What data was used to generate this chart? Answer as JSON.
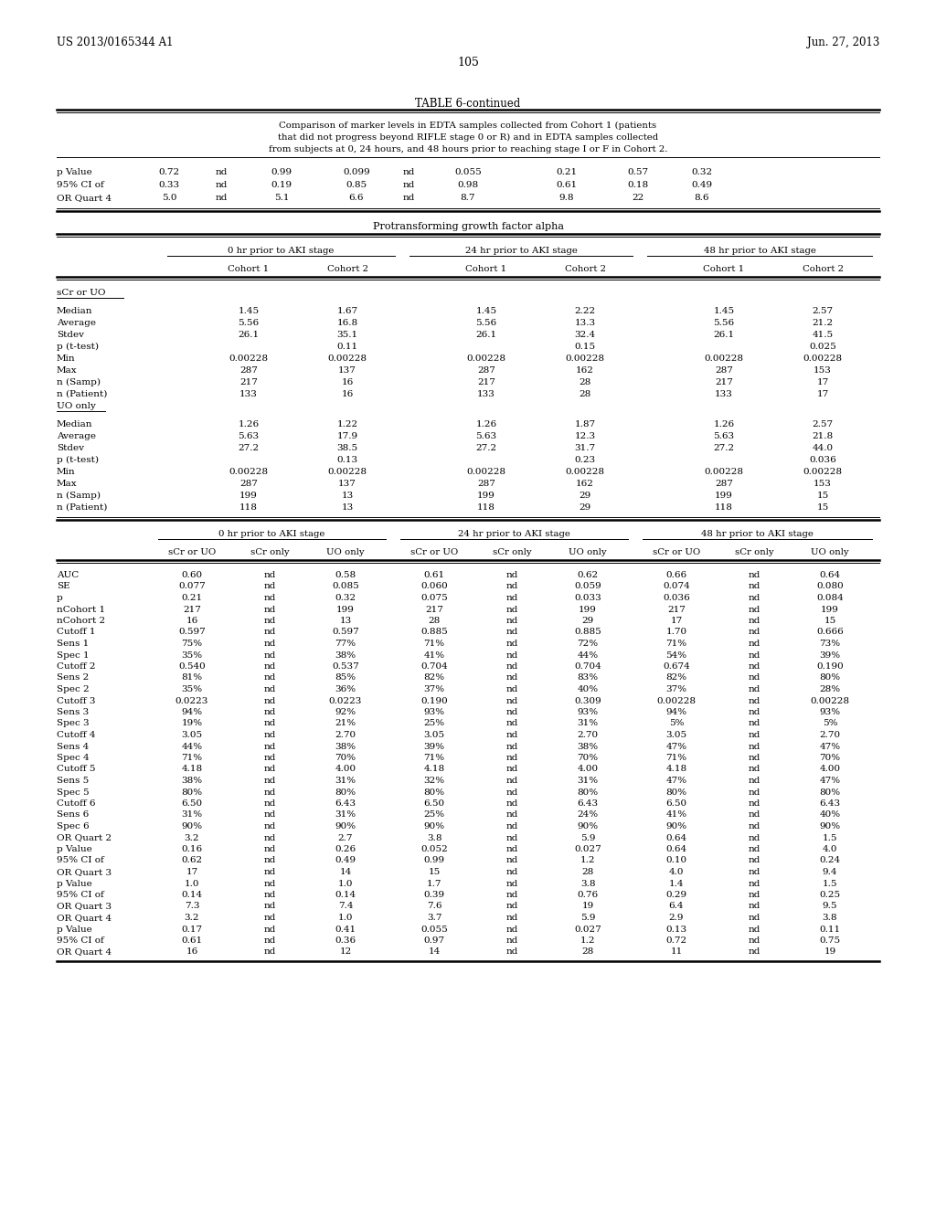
{
  "header_left": "US 2013/0165344 A1",
  "header_right": "Jun. 27, 2013",
  "page_number": "105",
  "table_title": "TABLE 6-continued",
  "caption_line1": "Comparison of marker levels in EDTA samples collected from Cohort 1 (patients",
  "caption_line2": "that did not progress beyond RIFLE stage 0 or R) and in EDTA samples collected",
  "caption_line3": "from subjects at 0, 24 hours, and 48 hours prior to reaching stage I or F in Cohort 2.",
  "top_rows": [
    [
      "p Value",
      "0.72",
      "nd",
      "0.99",
      "0.099",
      "nd",
      "0.055",
      "0.21",
      "0.57",
      "0.32"
    ],
    [
      "95% CI of",
      "0.33",
      "nd",
      "0.19",
      "0.85",
      "nd",
      "0.98",
      "0.61",
      "0.18",
      "0.49"
    ],
    [
      "OR Quart 4",
      "5.0",
      "nd",
      "5.1",
      "6.6",
      "nd",
      "8.7",
      "9.8",
      "22",
      "8.6"
    ]
  ],
  "section2_title": "Protransforming growth factor alpha",
  "col_group_headers": [
    "0 hr prior to AKI stage",
    "24 hr prior to AKI stage",
    "48 hr prior to AKI stage"
  ],
  "col_subheaders": [
    "Cohort 1",
    "Cohort 2",
    "Cohort 1",
    "Cohort 2",
    "Cohort 1",
    "Cohort 2"
  ],
  "section_sCr_UO": "sCr or UO",
  "sCr_UO_rows": [
    [
      "Median",
      "1.45",
      "1.67",
      "1.45",
      "2.22",
      "1.45",
      "2.57"
    ],
    [
      "Average",
      "5.56",
      "16.8",
      "5.56",
      "13.3",
      "5.56",
      "21.2"
    ],
    [
      "Stdev",
      "26.1",
      "35.1",
      "26.1",
      "32.4",
      "26.1",
      "41.5"
    ],
    [
      "p (t-test)",
      "",
      "0.11",
      "",
      "0.15",
      "",
      "0.025"
    ],
    [
      "Min",
      "0.00228",
      "0.00228",
      "0.00228",
      "0.00228",
      "0.00228",
      "0.00228"
    ],
    [
      "Max",
      "287",
      "137",
      "287",
      "162",
      "287",
      "153"
    ],
    [
      "n (Samp)",
      "217",
      "16",
      "217",
      "28",
      "217",
      "17"
    ],
    [
      "n (Patient)",
      "133",
      "16",
      "133",
      "28",
      "133",
      "17"
    ]
  ],
  "section_UO": "UO only",
  "UO_rows": [
    [
      "Median",
      "1.26",
      "1.22",
      "1.26",
      "1.87",
      "1.26",
      "2.57"
    ],
    [
      "Average",
      "5.63",
      "17.9",
      "5.63",
      "12.3",
      "5.63",
      "21.8"
    ],
    [
      "Stdev",
      "27.2",
      "38.5",
      "27.2",
      "31.7",
      "27.2",
      "44.0"
    ],
    [
      "p (t-test)",
      "",
      "0.13",
      "",
      "0.23",
      "",
      "0.036"
    ],
    [
      "Min",
      "0.00228",
      "0.00228",
      "0.00228",
      "0.00228",
      "0.00228",
      "0.00228"
    ],
    [
      "Max",
      "287",
      "137",
      "287",
      "162",
      "287",
      "153"
    ],
    [
      "n (Samp)",
      "199",
      "13",
      "199",
      "29",
      "199",
      "15"
    ],
    [
      "n (Patient)",
      "118",
      "13",
      "118",
      "29",
      "118",
      "15"
    ]
  ],
  "col_group_headers2": [
    "0 hr prior to AKI stage",
    "24 hr prior to AKI stage",
    "48 hr prior to AKI stage"
  ],
  "col_subheaders2": [
    "sCr or UO",
    "sCr only",
    "UO only",
    "sCr or UO",
    "sCr only",
    "UO only",
    "sCr or UO",
    "sCr only",
    "UO only"
  ],
  "auc_rows": [
    [
      "AUC",
      "0.60",
      "nd",
      "0.58",
      "0.61",
      "nd",
      "0.62",
      "0.66",
      "nd",
      "0.64"
    ],
    [
      "SE",
      "0.077",
      "nd",
      "0.085",
      "0.060",
      "nd",
      "0.059",
      "0.074",
      "nd",
      "0.080"
    ],
    [
      "p",
      "0.21",
      "nd",
      "0.32",
      "0.075",
      "nd",
      "0.033",
      "0.036",
      "nd",
      "0.084"
    ],
    [
      "nCohort 1",
      "217",
      "nd",
      "199",
      "217",
      "nd",
      "199",
      "217",
      "nd",
      "199"
    ],
    [
      "nCohort 2",
      "16",
      "nd",
      "13",
      "28",
      "nd",
      "29",
      "17",
      "nd",
      "15"
    ],
    [
      "Cutoff 1",
      "0.597",
      "nd",
      "0.597",
      "0.885",
      "nd",
      "0.885",
      "1.70",
      "nd",
      "0.666"
    ],
    [
      "Sens 1",
      "75%",
      "nd",
      "77%",
      "71%",
      "nd",
      "72%",
      "71%",
      "nd",
      "73%"
    ],
    [
      "Spec 1",
      "35%",
      "nd",
      "38%",
      "41%",
      "nd",
      "44%",
      "54%",
      "nd",
      "39%"
    ],
    [
      "Cutoff 2",
      "0.540",
      "nd",
      "0.537",
      "0.704",
      "nd",
      "0.704",
      "0.674",
      "nd",
      "0.190"
    ],
    [
      "Sens 2",
      "81%",
      "nd",
      "85%",
      "82%",
      "nd",
      "83%",
      "82%",
      "nd",
      "80%"
    ],
    [
      "Spec 2",
      "35%",
      "nd",
      "36%",
      "37%",
      "nd",
      "40%",
      "37%",
      "nd",
      "28%"
    ],
    [
      "Cutoff 3",
      "0.0223",
      "nd",
      "0.0223",
      "0.190",
      "nd",
      "0.309",
      "0.00228",
      "nd",
      "0.00228"
    ],
    [
      "Sens 3",
      "94%",
      "nd",
      "92%",
      "93%",
      "nd",
      "93%",
      "94%",
      "nd",
      "93%"
    ],
    [
      "Spec 3",
      "19%",
      "nd",
      "21%",
      "25%",
      "nd",
      "31%",
      "5%",
      "nd",
      "5%"
    ],
    [
      "Cutoff 4",
      "3.05",
      "nd",
      "2.70",
      "3.05",
      "nd",
      "2.70",
      "3.05",
      "nd",
      "2.70"
    ],
    [
      "Sens 4",
      "44%",
      "nd",
      "38%",
      "39%",
      "nd",
      "38%",
      "47%",
      "nd",
      "47%"
    ],
    [
      "Spec 4",
      "71%",
      "nd",
      "70%",
      "71%",
      "nd",
      "70%",
      "71%",
      "nd",
      "70%"
    ],
    [
      "Cutoff 5",
      "4.18",
      "nd",
      "4.00",
      "4.18",
      "nd",
      "4.00",
      "4.18",
      "nd",
      "4.00"
    ],
    [
      "Sens 5",
      "38%",
      "nd",
      "31%",
      "32%",
      "nd",
      "31%",
      "47%",
      "nd",
      "47%"
    ],
    [
      "Spec 5",
      "80%",
      "nd",
      "80%",
      "80%",
      "nd",
      "80%",
      "80%",
      "nd",
      "80%"
    ],
    [
      "Cutoff 6",
      "6.50",
      "nd",
      "6.43",
      "6.50",
      "nd",
      "6.43",
      "6.50",
      "nd",
      "6.43"
    ],
    [
      "Sens 6",
      "31%",
      "nd",
      "31%",
      "25%",
      "nd",
      "24%",
      "41%",
      "nd",
      "40%"
    ],
    [
      "Spec 6",
      "90%",
      "nd",
      "90%",
      "90%",
      "nd",
      "90%",
      "90%",
      "nd",
      "90%"
    ],
    [
      "OR Quart 2",
      "3.2",
      "nd",
      "2.7",
      "3.8",
      "nd",
      "5.9",
      "0.64",
      "nd",
      "1.5"
    ],
    [
      "p Value",
      "0.16",
      "nd",
      "0.26",
      "0.052",
      "nd",
      "0.027",
      "0.64",
      "nd",
      "4.0"
    ],
    [
      "95% CI of",
      "0.62",
      "nd",
      "0.49",
      "0.99",
      "nd",
      "1.2",
      "0.10",
      "nd",
      "0.24"
    ],
    [
      "OR Quart 3",
      "17",
      "nd",
      "14",
      "15",
      "nd",
      "28",
      "4.0",
      "nd",
      "9.4"
    ],
    [
      "p Value",
      "1.0",
      "nd",
      "1.0",
      "1.7",
      "nd",
      "3.8",
      "1.4",
      "nd",
      "1.5"
    ],
    [
      "95% CI of",
      "0.14",
      "nd",
      "0.14",
      "0.39",
      "nd",
      "0.76",
      "0.29",
      "nd",
      "0.25"
    ],
    [
      "OR Quart 3",
      "7.3",
      "nd",
      "7.4",
      "7.6",
      "nd",
      "19",
      "6.4",
      "nd",
      "9.5"
    ],
    [
      "OR Quart 4",
      "3.2",
      "nd",
      "1.0",
      "3.7",
      "nd",
      "5.9",
      "2.9",
      "nd",
      "3.8"
    ],
    [
      "p Value",
      "0.17",
      "nd",
      "0.41",
      "0.055",
      "nd",
      "0.027",
      "0.13",
      "nd",
      "0.11"
    ],
    [
      "95% CI of",
      "0.61",
      "nd",
      "0.36",
      "0.97",
      "nd",
      "1.2",
      "0.72",
      "nd",
      "0.75"
    ],
    [
      "OR Quart 4",
      "16",
      "nd",
      "12",
      "14",
      "nd",
      "28",
      "11",
      "nd",
      "19"
    ]
  ]
}
